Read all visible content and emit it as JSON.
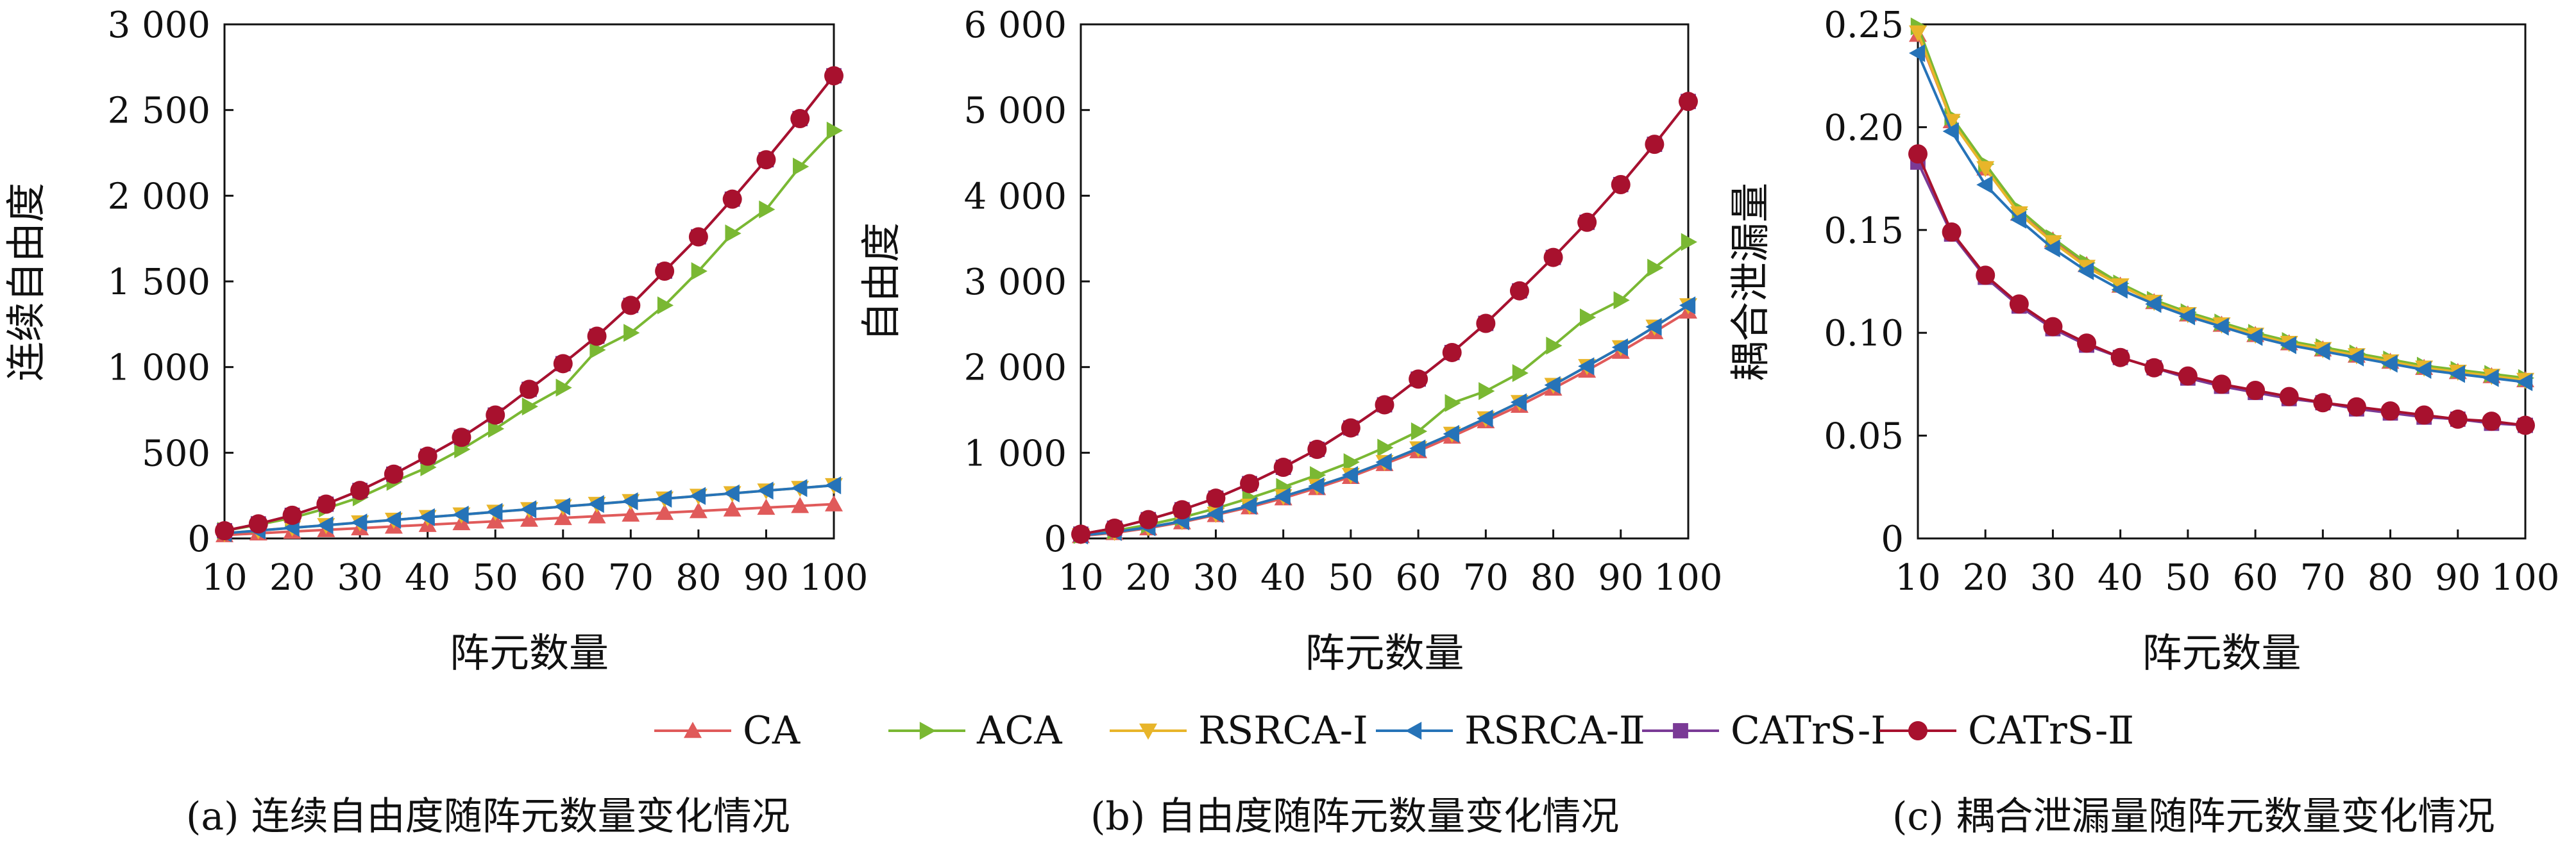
{
  "chart_data": [
    {
      "type": "line",
      "caption": "(a) 连续自由度随阵元数量变化情况",
      "xlabel": "阵元数量",
      "ylabel": "连续自由度",
      "xlim": [
        10,
        100
      ],
      "ylim": [
        0,
        3000
      ],
      "x_ticks": [
        10,
        20,
        30,
        40,
        50,
        60,
        70,
        80,
        90,
        100
      ],
      "y_ticks": [
        0,
        500,
        1000,
        1500,
        2000,
        2500,
        3000
      ],
      "y_tick_labels": [
        "0",
        "500",
        "1 000",
        "1 500",
        "2 000",
        "2 500",
        "3 000"
      ],
      "x": [
        10,
        15,
        20,
        25,
        30,
        35,
        40,
        45,
        50,
        55,
        60,
        65,
        70,
        75,
        80,
        85,
        90,
        95,
        100
      ],
      "series": [
        {
          "name": "CA",
          "values": [
            20,
            30,
            40,
            50,
            60,
            70,
            80,
            90,
            100,
            110,
            120,
            130,
            140,
            150,
            160,
            170,
            180,
            190,
            200
          ]
        },
        {
          "name": "ACA",
          "values": [
            45,
            80,
            120,
            175,
            240,
            330,
            415,
            520,
            640,
            770,
            880,
            1100,
            1200,
            1360,
            1560,
            1780,
            1920,
            2170,
            2380
          ]
        },
        {
          "name": "RSRCA-Ⅰ",
          "values": [
            30,
            46,
            62,
            77,
            93,
            108,
            124,
            139,
            155,
            170,
            186,
            201,
            217,
            232,
            248,
            263,
            279,
            294,
            310
          ]
        },
        {
          "name": "RSRCA-Ⅱ",
          "values": [
            30,
            46,
            62,
            77,
            93,
            108,
            124,
            139,
            155,
            170,
            186,
            201,
            217,
            232,
            248,
            263,
            279,
            294,
            310
          ]
        },
        {
          "name": "CATrS-Ⅰ",
          "values": [
            45,
            85,
            135,
            200,
            280,
            375,
            480,
            590,
            720,
            870,
            1020,
            1180,
            1360,
            1560,
            1760,
            1980,
            2210,
            2450,
            2700
          ]
        },
        {
          "name": "CATrS-Ⅱ",
          "values": [
            45,
            85,
            135,
            200,
            280,
            375,
            480,
            590,
            720,
            870,
            1020,
            1180,
            1360,
            1560,
            1760,
            1980,
            2210,
            2450,
            2700
          ]
        }
      ]
    },
    {
      "type": "line",
      "caption": "(b) 自由度随阵元数量变化情况",
      "xlabel": "阵元数量",
      "ylabel": "自由度",
      "xlim": [
        10,
        100
      ],
      "ylim": [
        0,
        6000
      ],
      "x_ticks": [
        10,
        20,
        30,
        40,
        50,
        60,
        70,
        80,
        90,
        100
      ],
      "y_ticks": [
        0,
        1000,
        2000,
        3000,
        4000,
        5000,
        6000
      ],
      "y_tick_labels": [
        "0",
        "1 000",
        "2 000",
        "3 000",
        "4 000",
        "5 000",
        "6 000"
      ],
      "x": [
        10,
        15,
        20,
        25,
        30,
        35,
        40,
        45,
        50,
        55,
        60,
        65,
        70,
        75,
        80,
        85,
        90,
        95,
        100
      ],
      "series": [
        {
          "name": "CA",
          "values": [
            30,
            65,
            120,
            190,
            275,
            365,
            470,
            590,
            720,
            870,
            1020,
            1190,
            1370,
            1550,
            1750,
            1960,
            2180,
            2410,
            2650
          ]
        },
        {
          "name": "ACA",
          "values": [
            40,
            90,
            160,
            245,
            350,
            470,
            600,
            740,
            890,
            1060,
            1250,
            1580,
            1720,
            1930,
            2250,
            2580,
            2780,
            3160,
            3460
          ]
        },
        {
          "name": "RSRCA-Ⅰ",
          "values": [
            35,
            75,
            130,
            200,
            285,
            380,
            490,
            610,
            740,
            890,
            1050,
            1220,
            1400,
            1590,
            1790,
            2010,
            2230,
            2470,
            2720
          ]
        },
        {
          "name": "RSRCA-Ⅱ",
          "values": [
            35,
            75,
            130,
            200,
            285,
            380,
            490,
            610,
            740,
            890,
            1050,
            1220,
            1400,
            1590,
            1790,
            2010,
            2230,
            2470,
            2720
          ]
        },
        {
          "name": "CATrS-Ⅰ",
          "values": [
            50,
            120,
            220,
            335,
            470,
            640,
            830,
            1040,
            1290,
            1560,
            1860,
            2170,
            2510,
            2890,
            3280,
            3690,
            4130,
            4600,
            5100
          ]
        },
        {
          "name": "CATrS-Ⅱ",
          "values": [
            50,
            120,
            220,
            335,
            470,
            640,
            830,
            1040,
            1290,
            1560,
            1860,
            2170,
            2510,
            2890,
            3280,
            3690,
            4130,
            4600,
            5100
          ]
        }
      ]
    },
    {
      "type": "line",
      "caption": "(c) 耦合泄漏量随阵元数量变化情况",
      "xlabel": "阵元数量",
      "ylabel": "耦合泄漏量",
      "xlim": [
        10,
        100
      ],
      "ylim": [
        0,
        0.25
      ],
      "x_ticks": [
        10,
        20,
        30,
        40,
        50,
        60,
        70,
        80,
        90,
        100
      ],
      "y_ticks": [
        0,
        0.05,
        0.1,
        0.15,
        0.2,
        0.25
      ],
      "y_tick_labels": [
        "0",
        "0.05",
        "0.10",
        "0.15",
        "0.20",
        "0.25"
      ],
      "x": [
        10,
        15,
        20,
        25,
        30,
        35,
        40,
        45,
        50,
        55,
        60,
        65,
        70,
        75,
        80,
        85,
        90,
        95,
        100
      ],
      "series": [
        {
          "name": "CA",
          "values": [
            0.245,
            0.203,
            0.18,
            0.158,
            0.145,
            0.133,
            0.123,
            0.115,
            0.109,
            0.104,
            0.099,
            0.095,
            0.092,
            0.089,
            0.086,
            0.083,
            0.081,
            0.079,
            0.077
          ]
        },
        {
          "name": "ACA",
          "values": [
            0.249,
            0.205,
            0.182,
            0.16,
            0.146,
            0.134,
            0.124,
            0.116,
            0.11,
            0.105,
            0.1,
            0.096,
            0.093,
            0.09,
            0.087,
            0.084,
            0.082,
            0.08,
            0.078
          ]
        },
        {
          "name": "RSRCA-Ⅰ",
          "values": [
            0.246,
            0.203,
            0.18,
            0.158,
            0.144,
            0.132,
            0.123,
            0.115,
            0.109,
            0.104,
            0.099,
            0.095,
            0.092,
            0.089,
            0.086,
            0.083,
            0.081,
            0.079,
            0.077
          ]
        },
        {
          "name": "RSRCA-Ⅱ",
          "values": [
            0.236,
            0.198,
            0.172,
            0.155,
            0.141,
            0.13,
            0.121,
            0.114,
            0.108,
            0.103,
            0.098,
            0.094,
            0.091,
            0.088,
            0.085,
            0.082,
            0.08,
            0.078,
            0.076
          ]
        },
        {
          "name": "CATrS-Ⅰ",
          "values": [
            0.183,
            0.148,
            0.127,
            0.113,
            0.102,
            0.094,
            0.088,
            0.083,
            0.078,
            0.074,
            0.071,
            0.068,
            0.066,
            0.063,
            0.061,
            0.059,
            0.058,
            0.056,
            0.055
          ]
        },
        {
          "name": "CATrS-Ⅱ",
          "values": [
            0.187,
            0.149,
            0.128,
            0.114,
            0.103,
            0.095,
            0.088,
            0.083,
            0.079,
            0.075,
            0.072,
            0.069,
            0.066,
            0.064,
            0.062,
            0.06,
            0.058,
            0.057,
            0.055
          ]
        }
      ]
    }
  ],
  "legend": {
    "entries": [
      {
        "name": "CA",
        "color": "#e05a5a",
        "marker": "triangle-up"
      },
      {
        "name": "ACA",
        "color": "#7ab833",
        "marker": "triangle-right"
      },
      {
        "name": "RSRCA-Ⅰ",
        "color": "#e8b52a",
        "marker": "triangle-down"
      },
      {
        "name": "RSRCA-Ⅱ",
        "color": "#2673b8",
        "marker": "triangle-left"
      },
      {
        "name": "CATrS-Ⅰ",
        "color": "#7a3a96",
        "marker": "square"
      },
      {
        "name": "CATrS-Ⅱ",
        "color": "#a8112e",
        "marker": "circle"
      }
    ],
    "placement": "bottom-center"
  }
}
